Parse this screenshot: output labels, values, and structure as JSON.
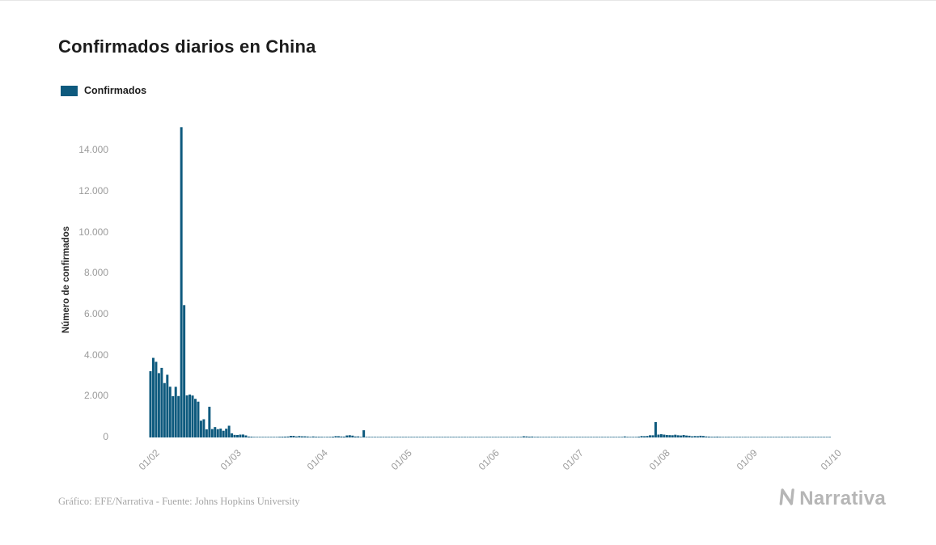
{
  "title": "Confirmados diarios en China",
  "legend": {
    "label": "Confirmados",
    "color": "#0e5a7e"
  },
  "footer": {
    "credit": "Gráfico: EFE/Narrativa - Fuente: Johns Hopkins University",
    "brand": "Narrativa"
  },
  "chart_data": {
    "type": "bar",
    "title": "Confirmados diarios en China",
    "xlabel": "",
    "ylabel": "Número de confirmados",
    "ylim": [
      0,
      15400
    ],
    "grid": false,
    "legend_position": "top-left",
    "bar_color": "#0e5a7e",
    "x_start_date": "2020-02-01",
    "x_frequency": "daily",
    "x_ticks": {
      "labels": [
        "01/02",
        "01/03",
        "01/04",
        "01/05",
        "01/06",
        "01/07",
        "01/08",
        "01/09",
        "01/10"
      ],
      "indices": [
        0,
        29,
        60,
        90,
        121,
        151,
        182,
        213,
        243
      ]
    },
    "y_ticks": {
      "values": [
        0,
        2000,
        4000,
        6000,
        8000,
        10000,
        12000,
        14000
      ],
      "labels": [
        "0",
        "2.000",
        "4.000",
        "6.000",
        "8.000",
        "10.000",
        "12.000",
        "14.000"
      ]
    },
    "values": [
      3235,
      3887,
      3694,
      3143,
      3399,
      2656,
      3062,
      2478,
      2015,
      2473,
      2022,
      15152,
      6463,
      2055,
      2097,
      2048,
      1886,
      1749,
      820,
      889,
      397,
      1500,
      409,
      508,
      406,
      433,
      327,
      427,
      573,
      202,
      125,
      119,
      139,
      143,
      99,
      44,
      40,
      19,
      24,
      15,
      8,
      11,
      20,
      16,
      21,
      13,
      34,
      39,
      41,
      46,
      78,
      78,
      47,
      67,
      55,
      54,
      45,
      31,
      48,
      36,
      35,
      31,
      19,
      30,
      32,
      39,
      63,
      61,
      46,
      42,
      97,
      108,
      89,
      46,
      50,
      26,
      352,
      27,
      16,
      12,
      11,
      6,
      10,
      6,
      3,
      11,
      6,
      22,
      4,
      12,
      12,
      2,
      17,
      3,
      2,
      2,
      1,
      1,
      14,
      20,
      17,
      7,
      7,
      4,
      8,
      5,
      7,
      6,
      6,
      5,
      4,
      4,
      3,
      11,
      7,
      3,
      2,
      1,
      4,
      3,
      2,
      16,
      1,
      1,
      2,
      1,
      6,
      4,
      4,
      3,
      11,
      7,
      11,
      57,
      49,
      40,
      44,
      28,
      32,
      27,
      26,
      26,
      22,
      19,
      19,
      21,
      21,
      17,
      12,
      19,
      3,
      3,
      5,
      3,
      8,
      4,
      8,
      8,
      9,
      4,
      4,
      6,
      8,
      10,
      6,
      11,
      10,
      22,
      26,
      49,
      30,
      14,
      28,
      28,
      41,
      68,
      61,
      71,
      105,
      105,
      752,
      139,
      159,
      138,
      121,
      113,
      108,
      132,
      106,
      96,
      119,
      94,
      83,
      56,
      69,
      62,
      83,
      71,
      48,
      42,
      33,
      35,
      41,
      31,
      27,
      30,
      30,
      22,
      17,
      21,
      18,
      25,
      27,
      18,
      16,
      27,
      16,
      19,
      21,
      14,
      12,
      11,
      20,
      15,
      25,
      18,
      14,
      13,
      15,
      14,
      20,
      19,
      17,
      13,
      15,
      12,
      15,
      17,
      21,
      24,
      27,
      20,
      16
    ]
  }
}
